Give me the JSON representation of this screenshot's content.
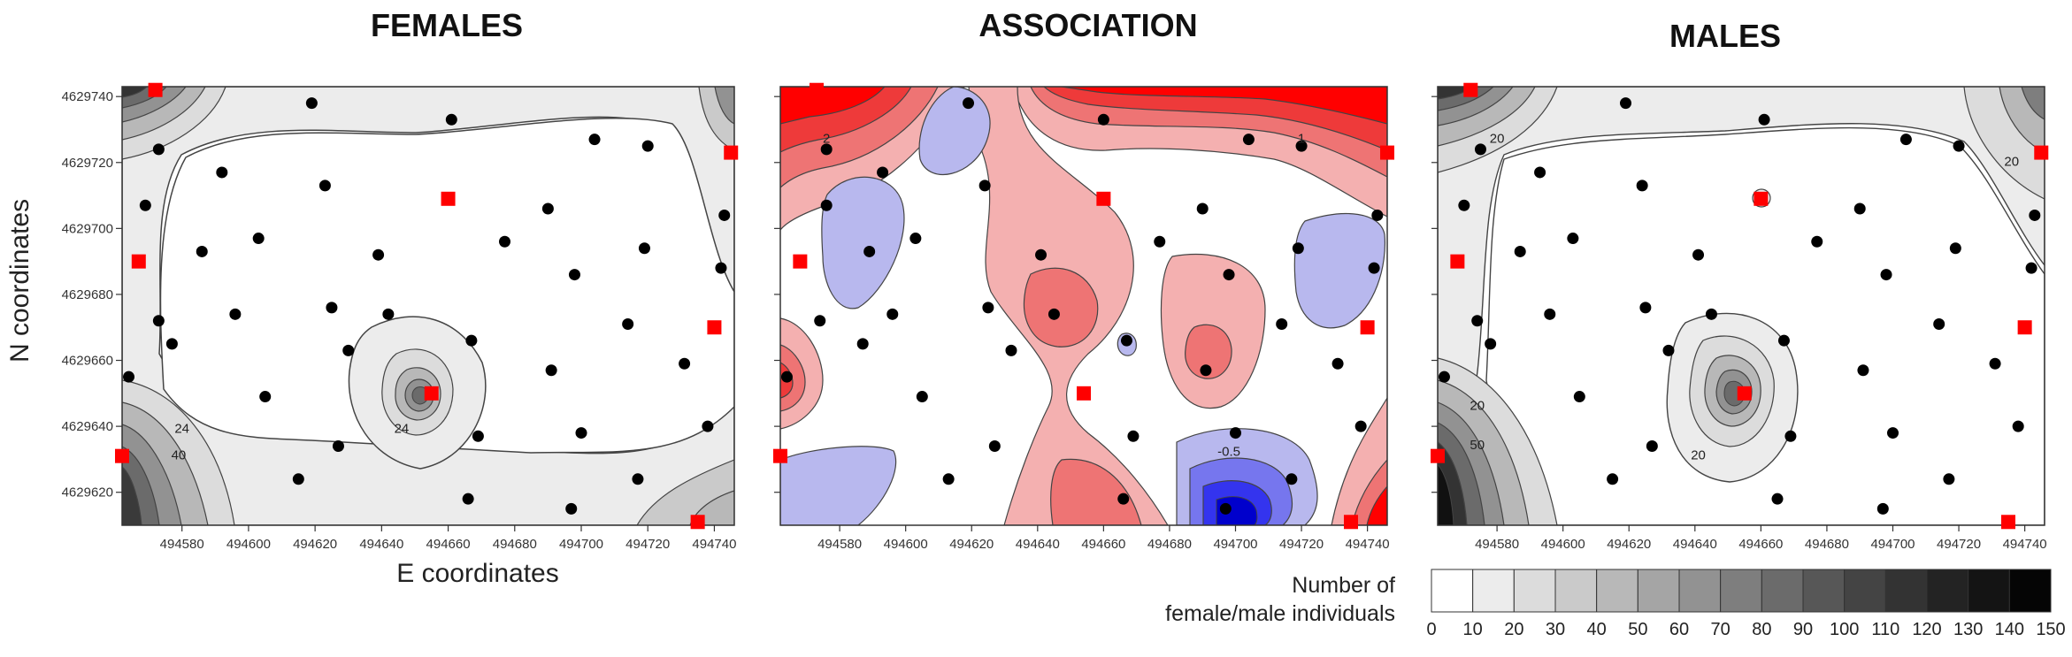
{
  "y_axis_title": "N coordinates",
  "x_axis_title": "E coordinates",
  "legend": {
    "title_line1": "Number of",
    "title_line2": "female/male individuals",
    "ticks": [
      "0",
      "10",
      "20",
      "30",
      "40",
      "50",
      "60",
      "70",
      "80",
      "90",
      "100",
      "110",
      "120",
      "130",
      "140",
      "150"
    ],
    "greys": [
      "#ffffff",
      "#ececec",
      "#dcdcdc",
      "#cacaca",
      "#b8b8b8",
      "#a5a5a5",
      "#929292",
      "#7e7e7e",
      "#6b6b6b",
      "#575757",
      "#444444",
      "#333333",
      "#232323",
      "#141414",
      "#050505"
    ]
  },
  "chart_data": [
    {
      "type": "contour",
      "title": "FEMALES",
      "x_ticks": [
        "494580",
        "494600",
        "494620",
        "494640",
        "494660",
        "494680",
        "494700",
        "494720",
        "494740"
      ],
      "y_ticks": [
        "4629740",
        "4629720",
        "4629700",
        "4629680",
        "4629660",
        "4629640",
        "4629620"
      ],
      "xlim": [
        494562,
        494746
      ],
      "ylim": [
        4629610,
        4629743
      ],
      "contour_labels": [
        {
          "text": "24",
          "x": 494580,
          "y": 4629638
        },
        {
          "text": "40",
          "x": 494579,
          "y": 4629630
        },
        {
          "text": "24",
          "x": 494646,
          "y": 4629638
        }
      ],
      "trap_points": [
        [
          494564,
          4629655
        ],
        [
          494573,
          4629724
        ],
        [
          494569,
          4629707
        ],
        [
          494573,
          4629672
        ],
        [
          494577,
          4629665
        ],
        [
          494586,
          4629693
        ],
        [
          494592,
          4629717
        ],
        [
          494596,
          4629674
        ],
        [
          494603,
          4629697
        ],
        [
          494605,
          4629649
        ],
        [
          494619,
          4629738
        ],
        [
          494623,
          4629713
        ],
        [
          494625,
          4629676
        ],
        [
          494627,
          4629634
        ],
        [
          494615,
          4629624
        ],
        [
          494630,
          4629663
        ],
        [
          494639,
          4629692
        ],
        [
          494642,
          4629674
        ],
        [
          494661,
          4629733
        ],
        [
          494667,
          4629666
        ],
        [
          494669,
          4629637
        ],
        [
          494666,
          4629618
        ],
        [
          494677,
          4629696
        ],
        [
          494690,
          4629706
        ],
        [
          494691,
          4629657
        ],
        [
          494697,
          4629615
        ],
        [
          494698,
          4629686
        ],
        [
          494700,
          4629638
        ],
        [
          494704,
          4629727
        ],
        [
          494714,
          4629671
        ],
        [
          494717,
          4629624
        ],
        [
          494719,
          4629694
        ],
        [
          494720,
          4629725
        ],
        [
          494731,
          4629659
        ],
        [
          494738,
          4629640
        ],
        [
          494742,
          4629688
        ],
        [
          494743,
          4629704
        ]
      ],
      "sampling_sites": [
        [
          494572,
          4629742
        ],
        [
          494567,
          4629690
        ],
        [
          494562,
          4629631
        ],
        [
          494655,
          4629650
        ],
        [
          494660,
          4629709
        ],
        [
          494740,
          4629670
        ],
        [
          494745,
          4629723
        ],
        [
          494735,
          4629611
        ]
      ]
    },
    {
      "type": "contour",
      "title": "ASSOCIATION",
      "x_ticks": [
        "494580",
        "494600",
        "494620",
        "494640",
        "494660",
        "494680",
        "494700",
        "494720",
        "494740"
      ],
      "xlim": [
        494562,
        494746
      ],
      "ylim": [
        4629610,
        4629743
      ],
      "contour_labels": [
        {
          "text": "2",
          "x": 494576,
          "y": 4629726
        },
        {
          "text": "1",
          "x": 494720,
          "y": 4629726
        },
        {
          "text": "-0.5",
          "x": 494698,
          "y": 4629631
        }
      ],
      "positive_color": "#ff0000",
      "negative_color": "#0000ff",
      "trap_points": [
        [
          494564,
          4629655
        ],
        [
          494576,
          4629724
        ],
        [
          494576,
          4629707
        ],
        [
          494574,
          4629672
        ],
        [
          494587,
          4629665
        ],
        [
          494589,
          4629693
        ],
        [
          494593,
          4629717
        ],
        [
          494596,
          4629674
        ],
        [
          494603,
          4629697
        ],
        [
          494605,
          4629649
        ],
        [
          494619,
          4629738
        ],
        [
          494624,
          4629713
        ],
        [
          494625,
          4629676
        ],
        [
          494627,
          4629634
        ],
        [
          494613,
          4629624
        ],
        [
          494632,
          4629663
        ],
        [
          494641,
          4629692
        ],
        [
          494645,
          4629674
        ],
        [
          494660,
          4629733
        ],
        [
          494667,
          4629666
        ],
        [
          494669,
          4629637
        ],
        [
          494666,
          4629618
        ],
        [
          494677,
          4629696
        ],
        [
          494690,
          4629706
        ],
        [
          494691,
          4629657
        ],
        [
          494697,
          4629615
        ],
        [
          494698,
          4629686
        ],
        [
          494700,
          4629638
        ],
        [
          494704,
          4629727
        ],
        [
          494714,
          4629671
        ],
        [
          494717,
          4629624
        ],
        [
          494719,
          4629694
        ],
        [
          494720,
          4629725
        ],
        [
          494731,
          4629659
        ],
        [
          494738,
          4629640
        ],
        [
          494742,
          4629688
        ],
        [
          494743,
          4629704
        ]
      ],
      "sampling_sites": [
        [
          494573,
          4629742
        ],
        [
          494568,
          4629690
        ],
        [
          494562,
          4629631
        ],
        [
          494654,
          4629650
        ],
        [
          494660,
          4629709
        ],
        [
          494740,
          4629670
        ],
        [
          494746,
          4629723
        ],
        [
          494735,
          4629611
        ]
      ]
    },
    {
      "type": "contour",
      "title": "MALES",
      "x_ticks": [
        "494580",
        "494600",
        "494620",
        "494640",
        "494660",
        "494680",
        "494700",
        "494720",
        "494740"
      ],
      "xlim": [
        494562,
        494746
      ],
      "ylim": [
        4629610,
        4629743
      ],
      "contour_labels": [
        {
          "text": "20",
          "x": 494580,
          "y": 4629726
        },
        {
          "text": "20",
          "x": 494736,
          "y": 4629719
        },
        {
          "text": "20",
          "x": 494574,
          "y": 4629645
        },
        {
          "text": "50",
          "x": 494574,
          "y": 4629633
        },
        {
          "text": "20",
          "x": 494641,
          "y": 4629630
        }
      ],
      "trap_points": [
        [
          494564,
          4629655
        ],
        [
          494575,
          4629724
        ],
        [
          494570,
          4629707
        ],
        [
          494574,
          4629672
        ],
        [
          494578,
          4629665
        ],
        [
          494587,
          4629693
        ],
        [
          494593,
          4629717
        ],
        [
          494596,
          4629674
        ],
        [
          494603,
          4629697
        ],
        [
          494605,
          4629649
        ],
        [
          494619,
          4629738
        ],
        [
          494624,
          4629713
        ],
        [
          494625,
          4629676
        ],
        [
          494627,
          4629634
        ],
        [
          494615,
          4629624
        ],
        [
          494632,
          4629663
        ],
        [
          494641,
          4629692
        ],
        [
          494645,
          4629674
        ],
        [
          494661,
          4629733
        ],
        [
          494667,
          4629666
        ],
        [
          494669,
          4629637
        ],
        [
          494665,
          4629618
        ],
        [
          494677,
          4629696
        ],
        [
          494690,
          4629706
        ],
        [
          494691,
          4629657
        ],
        [
          494697,
          4629615
        ],
        [
          494698,
          4629686
        ],
        [
          494700,
          4629638
        ],
        [
          494704,
          4629727
        ],
        [
          494714,
          4629671
        ],
        [
          494717,
          4629624
        ],
        [
          494719,
          4629694
        ],
        [
          494720,
          4629725
        ],
        [
          494731,
          4629659
        ],
        [
          494738,
          4629640
        ],
        [
          494742,
          4629688
        ],
        [
          494743,
          4629704
        ]
      ],
      "sampling_sites": [
        [
          494572,
          4629742
        ],
        [
          494568,
          4629690
        ],
        [
          494562,
          4629631
        ],
        [
          494655,
          4629650
        ],
        [
          494660,
          4629709
        ],
        [
          494740,
          4629670
        ],
        [
          494745,
          4629723
        ],
        [
          494735,
          4629611
        ]
      ]
    }
  ]
}
